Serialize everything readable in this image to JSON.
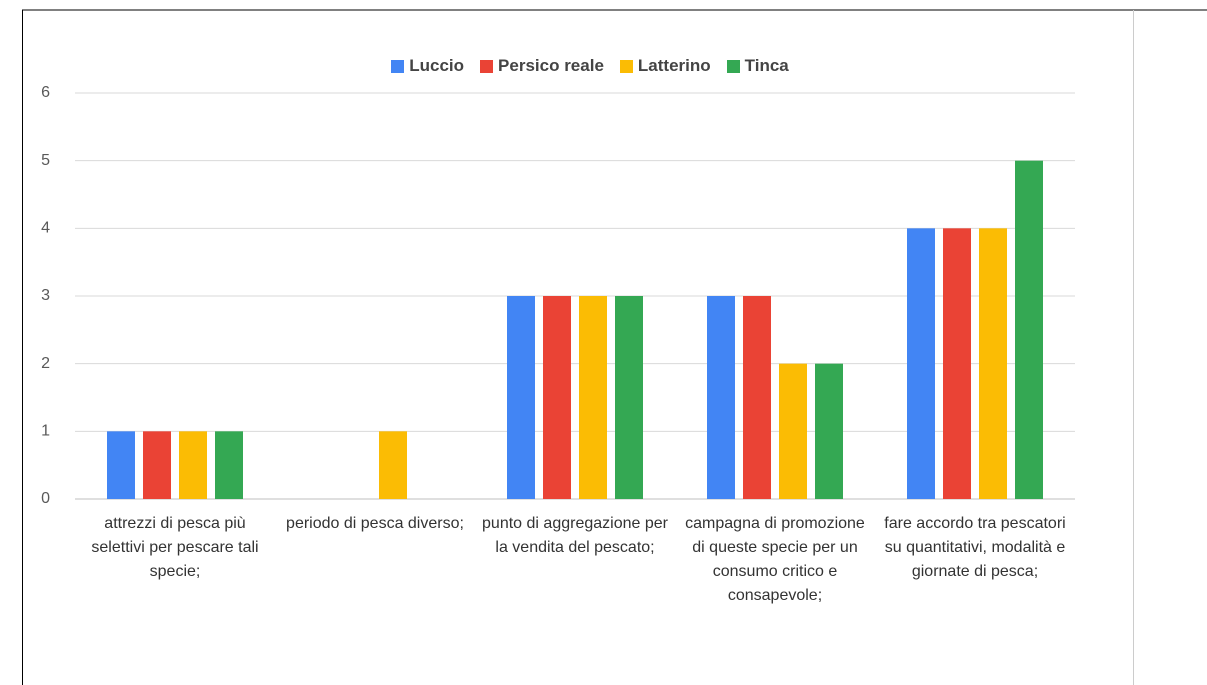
{
  "chart_data": {
    "type": "bar",
    "categories": [
      "attrezzi di pesca più selettivi per pescare tali specie;",
      "periodo di pesca diverso;",
      "punto di aggregazione per la vendita del pescato;",
      "campagna di promozione di queste specie per un consumo critico e consapevole;",
      "fare accordo tra pescatori su quantitativi, modalità e giornate di pesca;"
    ],
    "series": [
      {
        "name": "Luccio",
        "color": "#4285f4",
        "values": [
          1,
          0,
          3,
          3,
          4
        ]
      },
      {
        "name": "Persico reale",
        "color": "#ea4335",
        "values": [
          1,
          0,
          3,
          3,
          4
        ]
      },
      {
        "name": "Latterino",
        "color": "#fbbc04",
        "values": [
          1,
          1,
          3,
          2,
          4
        ]
      },
      {
        "name": "Tinca",
        "color": "#34a853",
        "values": [
          1,
          0,
          3,
          2,
          5
        ]
      }
    ],
    "ylim": [
      0,
      6
    ],
    "yticks": [
      0,
      1,
      2,
      3,
      4,
      5,
      6
    ],
    "grid": true,
    "legend": "top"
  }
}
